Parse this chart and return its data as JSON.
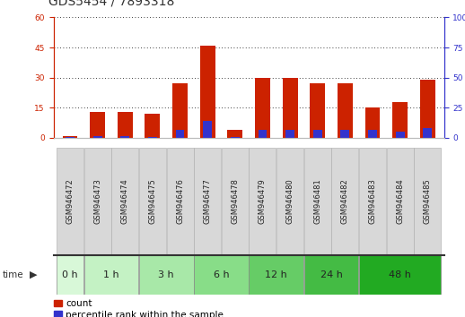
{
  "title": "GDS5454 / 7893318",
  "samples": [
    "GSM946472",
    "GSM946473",
    "GSM946474",
    "GSM946475",
    "GSM946476",
    "GSM946477",
    "GSM946478",
    "GSM946479",
    "GSM946480",
    "GSM946481",
    "GSM946482",
    "GSM946483",
    "GSM946484",
    "GSM946485"
  ],
  "count": [
    1,
    13,
    13,
    12,
    27,
    46,
    4,
    30,
    30,
    27,
    27,
    15,
    18,
    29
  ],
  "percentile": [
    1.0,
    1.5,
    1.5,
    1.0,
    7.0,
    14.0,
    1.0,
    7.0,
    7.0,
    7.0,
    7.0,
    7.0,
    5.0,
    8.0
  ],
  "bar_width": 0.55,
  "blue_bar_width": 0.32,
  "red_color": "#cc2200",
  "blue_color": "#3333cc",
  "left_ylim": [
    0,
    60
  ],
  "right_ylim": [
    0,
    100
  ],
  "left_yticks": [
    0,
    15,
    30,
    45,
    60
  ],
  "right_yticks": [
    0,
    25,
    50,
    75,
    100
  ],
  "time_groups": [
    {
      "label": "0 h",
      "start": 0,
      "end": 0,
      "color": "#d4f5d4"
    },
    {
      "label": "1 h",
      "start": 1,
      "end": 2,
      "color": "#c0f0c0"
    },
    {
      "label": "3 h",
      "start": 3,
      "end": 4,
      "color": "#aaeaaa"
    },
    {
      "label": "6 h",
      "start": 5,
      "end": 6,
      "color": "#88dd88"
    },
    {
      "label": "12 h",
      "start": 7,
      "end": 8,
      "color": "#66cc66"
    },
    {
      "label": "24 h",
      "start": 9,
      "end": 10,
      "color": "#44bb44"
    },
    {
      "label": "48 h",
      "start": 11,
      "end": 13,
      "color": "#22aa22"
    }
  ],
  "group_colors": [
    "#d4f5d4",
    "#c0f0c0",
    "#aaeaaa",
    "#88dd88",
    "#66cc66",
    "#44bb44",
    "#22aa22"
  ],
  "bg_color": "#ffffff",
  "grid_color": "#000000",
  "left_axis_color": "#cc2200",
  "right_axis_color": "#3333cc",
  "sample_box_color": "#d8d8d8",
  "sample_box_edge": "#aaaaaa",
  "title_fontsize": 10,
  "tick_fontsize": 6.5,
  "legend_fontsize": 7.5,
  "time_label_fontsize": 8,
  "sample_fontsize": 6
}
